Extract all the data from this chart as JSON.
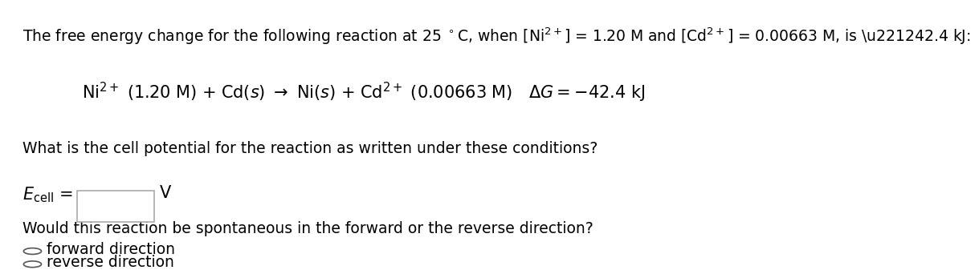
{
  "background_color": "#ffffff",
  "figsize": [
    12.0,
    3.37
  ],
  "dpi": 100,
  "line1": "The free energy change for the following reaction at 25 °C, when $\\left[\\mathrm{Ni}^{2+}\\right]$ = 1.20 M and $\\left[\\mathrm{Cd}^{2+}\\right]$ = 0.00663 M, is –42.4 kJ:",
  "line2_lhs": "$\\mathrm{Ni}^{2+}$ (1.20 M) + Cd($s$) → Ni($s$) + $\\mathrm{Cd}^{2+}$ (0.00663 M)",
  "line2_rhs": "$\\Delta G =$ −42.4 kJ",
  "line3": "What is the cell potential for the reaction as written under these conditions?",
  "line4_label": "$E_{\\mathrm{cell}}$ =",
  "line4_unit": "V",
  "line5": "Would this reaction be spontaneous in the forward or the reverse direction?",
  "line6a": "forward direction",
  "line6b": "reverse direction",
  "text_color": "#000000",
  "box_color": "#ffffff",
  "box_edge_color": "#aaaaaa",
  "font_size_line1": 13.5,
  "font_size_line2": 15,
  "font_size_line3": 13.5,
  "font_size_label": 15,
  "font_size_options": 13.5
}
